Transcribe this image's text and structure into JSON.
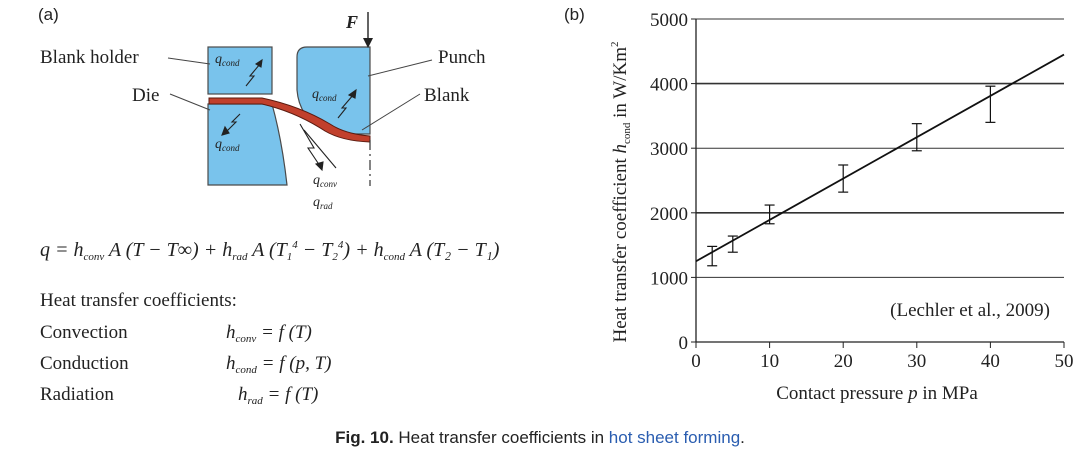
{
  "panel_a": {
    "label": "(a)",
    "force_label": "F",
    "labels": {
      "blank_holder": "Blank holder",
      "die": "Die",
      "punch": "Punch",
      "blank": "Blank"
    },
    "heat_flux": {
      "q": "q",
      "cond": "cond",
      "conv": "conv",
      "rad": "rad"
    },
    "equation": {
      "lhs": "q = ",
      "h": "h",
      "conv": "conv",
      "rad": "rad",
      "cond": "cond",
      "term1": " A (T − T∞) + ",
      "term2_pre": " A (T",
      "term2_mid": " − T",
      "term2_end": ") + ",
      "term3": " A (T₂ − T₁)",
      "sup4": "4",
      "sub1": "1",
      "sub2": "2"
    },
    "coefficients_title": "Heat transfer coefficients:",
    "coefficients": [
      {
        "name": "Convection",
        "h": "h",
        "sub": "conv",
        "rhs": " = f (T)"
      },
      {
        "name": "Conduction",
        "h": "h",
        "sub": "cond",
        "rhs": " = f (p, T)"
      },
      {
        "name": "Radiation",
        "h": "h",
        "sub": "rad",
        "rhs": " = f (T)"
      }
    ],
    "colors": {
      "tool": "#79c3ec",
      "tool_stroke": "#4a4a4a",
      "blank": "#c1402c"
    }
  },
  "panel_b": {
    "label": "(b)",
    "citation": "(Lechler et al., 2009)"
  },
  "chart_data": {
    "type": "line",
    "title": "",
    "xlabel_pre": "Contact pressure ",
    "xlabel_var": "p",
    "xlabel_post": " in MPa",
    "ylabel_pre": "Heat transfer coefficient ",
    "ylabel_var": "h",
    "ylabel_sub": "cond",
    "ylabel_post": " in W/Km",
    "ylabel_sup": "2",
    "xlim": [
      0,
      50
    ],
    "ylim": [
      0,
      5000
    ],
    "x_ticks": [
      "0",
      "10",
      "20",
      "30",
      "40",
      "50"
    ],
    "x_tick_values": [
      0,
      10,
      20,
      30,
      40,
      50
    ],
    "y_ticks": [
      "0",
      "1000",
      "2000",
      "3000",
      "4000",
      "5000"
    ],
    "y_tick_values": [
      0,
      1000,
      2000,
      3000,
      4000,
      5000
    ],
    "grid": "horizontal",
    "fit_line": {
      "x": [
        0,
        50
      ],
      "y": [
        1250,
        4450
      ]
    },
    "points": [
      {
        "x": 2.2,
        "y": 1330,
        "err_low": 1180,
        "err_high": 1480
      },
      {
        "x": 5,
        "y": 1520,
        "err_low": 1390,
        "err_high": 1640
      },
      {
        "x": 10,
        "y": 1980,
        "err_low": 1830,
        "err_high": 2120
      },
      {
        "x": 20,
        "y": 2530,
        "err_low": 2320,
        "err_high": 2740
      },
      {
        "x": 30,
        "y": 3170,
        "err_low": 2960,
        "err_high": 3380
      },
      {
        "x": 40,
        "y": 3680,
        "err_low": 3400,
        "err_high": 3960
      }
    ]
  },
  "caption": {
    "fig": "Fig. 10.",
    "text": " Heat transfer coefficients in ",
    "link": "hot sheet forming",
    "end": "."
  }
}
